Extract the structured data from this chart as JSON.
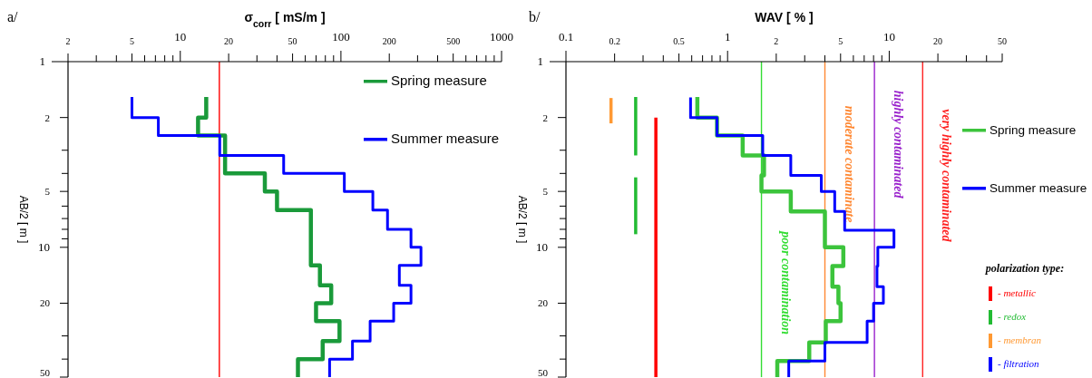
{
  "chart_data": [
    {
      "type": "line",
      "title": "a/",
      "xlabel": "σ$_{corr}$ [ mS/m ]",
      "ylabel": "AB/2 [ m ]",
      "log": "xy",
      "xlim": [
        2,
        1000
      ],
      "ylim": [
        50,
        1
      ],
      "xticks": [
        2,
        {
          "value": 3,
          "label": null
        },
        {
          "value": 4,
          "label": null
        },
        5,
        {
          "value": 6,
          "label": null
        },
        {
          "value": 7,
          "label": null
        },
        {
          "value": 8,
          "label": null
        },
        {
          "value": 9,
          "label": null
        },
        10,
        20,
        {
          "value": 30,
          "label": null
        },
        {
          "value": 40,
          "label": null
        },
        50,
        {
          "value": 60,
          "label": null
        },
        {
          "value": 70,
          "label": null
        },
        {
          "value": 80,
          "label": null
        },
        {
          "value": 90,
          "label": null
        },
        100,
        200,
        {
          "value": 300,
          "label": null
        },
        {
          "value": 400,
          "label": null
        },
        500,
        {
          "value": 600,
          "label": null
        },
        {
          "value": 700,
          "label": null
        },
        {
          "value": 800,
          "label": null
        },
        {
          "value": 900,
          "label": null
        },
        1000
      ],
      "yticks": [
        1,
        2,
        {
          "value": 3,
          "label": null
        },
        {
          "value": 4,
          "label": null
        },
        5,
        {
          "value": 6,
          "label": null
        },
        {
          "value": 7,
          "label": null
        },
        {
          "value": 8,
          "label": null
        },
        {
          "value": 9,
          "label": null
        },
        10,
        20,
        {
          "value": 30,
          "label": null
        },
        {
          "value": 40,
          "label": null
        },
        50
      ],
      "legend": "top right",
      "ref_lines": [
        {
          "axis": "x",
          "value": 17.5,
          "color": "#ff0000"
        }
      ],
      "series": [
        {
          "name": "Spring measure",
          "color": "#1a9a3a",
          "x": [
            14.5,
            14.5,
            12.9,
            12.9,
            19,
            19,
            33.6,
            33.6,
            40,
            40,
            65,
            65,
            74,
            74,
            87,
            87,
            70,
            70,
            98,
            98,
            77,
            77,
            54,
            54
          ],
          "values": [
            1.55,
            2,
            2,
            2.5,
            2.5,
            4,
            4,
            5,
            5,
            6.3,
            6.3,
            12.5,
            12.5,
            16,
            16,
            20,
            20,
            25,
            25,
            32,
            32,
            40,
            40,
            50
          ]
        },
        {
          "name": "Summer measure",
          "color": "#0000ff",
          "x": [
            5,
            5,
            7.3,
            7.3,
            17.6,
            17.6,
            44,
            44,
            105,
            105,
            158,
            158,
            195,
            195,
            273,
            273,
            315,
            315,
            231,
            231,
            273,
            273,
            213,
            213,
            152,
            152,
            118,
            118,
            85,
            85
          ],
          "values": [
            1.55,
            2,
            2,
            2.5,
            2.5,
            3.2,
            3.2,
            4,
            4,
            5,
            5,
            6.3,
            6.3,
            8,
            8,
            10,
            10,
            12.5,
            12.5,
            16,
            16,
            20,
            20,
            25,
            25,
            32,
            32,
            40,
            40,
            50
          ]
        }
      ]
    },
    {
      "type": "line",
      "title": "b/",
      "xlabel": "WAV [ % ]",
      "ylabel": "AB/2 [ m ]",
      "log": "xy",
      "xlim": [
        0.1,
        50
      ],
      "ylim": [
        50,
        1
      ],
      "xticks": [
        0.1,
        0.2,
        {
          "value": 0.3,
          "label": null
        },
        {
          "value": 0.4,
          "label": null
        },
        0.5,
        {
          "value": 0.6,
          "label": null
        },
        {
          "value": 0.7,
          "label": null
        },
        {
          "value": 0.8,
          "label": null
        },
        {
          "value": 0.9,
          "label": null
        },
        1,
        2,
        {
          "value": 3,
          "label": null
        },
        {
          "value": 4,
          "label": null
        },
        5,
        {
          "value": 6,
          "label": null
        },
        {
          "value": 7,
          "label": null
        },
        {
          "value": 8,
          "label": null
        },
        {
          "value": 9,
          "label": null
        },
        10,
        20,
        {
          "value": 30,
          "label": null
        },
        {
          "value": 40,
          "label": null
        },
        50
      ],
      "yticks": [
        1,
        2,
        {
          "value": 3,
          "label": null
        },
        {
          "value": 4,
          "label": null
        },
        5,
        {
          "value": 6,
          "label": null
        },
        {
          "value": 7,
          "label": null
        },
        {
          "value": 8,
          "label": null
        },
        {
          "value": 9,
          "label": null
        },
        10,
        20,
        {
          "value": 30,
          "label": null
        },
        {
          "value": 40,
          "label": null
        },
        50
      ],
      "legend": "right",
      "legend_title": "polarization type:",
      "ref_lines": [
        {
          "axis": "x",
          "value": 1.62,
          "color": "#33dd33"
        },
        {
          "axis": "x",
          "value": 4,
          "color": "#ff8833"
        },
        {
          "axis": "x",
          "value": 8.1,
          "color": "#9922cc"
        },
        {
          "axis": "x",
          "value": 16.1,
          "color": "#ff2222"
        }
      ],
      "annotations": [
        {
          "text": "poor contamination",
          "x": 1.62,
          "y": 8.2
        },
        {
          "text": "moderate contaminate",
          "x": 4,
          "y": 1.73
        },
        {
          "text": "highly contaminated",
          "x": 8.1,
          "y": 1.43
        },
        {
          "text": "very highly contaminated",
          "x": 16.1,
          "y": 1.8
        }
      ],
      "series": [
        {
          "name": "Spring measure",
          "color": "#3cc43c",
          "x": [
            0.65,
            0.65,
            0.86,
            0.86,
            1.24,
            1.24,
            1.68,
            1.68,
            1.62,
            1.62,
            2.46,
            2.46,
            4,
            4,
            5.2,
            5.2,
            4.45,
            4.45,
            4.85,
            4.85,
            5,
            5,
            4.05,
            4.05,
            3.2,
            3.2,
            2.03,
            2.03
          ],
          "values": [
            1.55,
            2,
            2,
            2.5,
            2.5,
            3.2,
            3.2,
            4.1,
            4.1,
            5,
            5,
            6.4,
            6.4,
            10,
            10,
            12.6,
            12.6,
            16.3,
            16.3,
            20,
            20,
            25,
            25,
            32.5,
            32.5,
            40.9,
            40.9,
            50
          ]
        },
        {
          "name": "Summer measure",
          "color": "#0000ff",
          "x": [
            0.59,
            0.59,
            0.86,
            0.86,
            1.65,
            1.65,
            2.46,
            2.46,
            3.8,
            3.8,
            4.6,
            4.6,
            5.3,
            5.3,
            10.7,
            10.7,
            8.5,
            8.5,
            8.4,
            8.4,
            9.2,
            9.2,
            8,
            8,
            7.3,
            7.3,
            4,
            4,
            2.39,
            2.39
          ],
          "values": [
            1.56,
            2,
            2,
            2.5,
            2.5,
            3.2,
            3.2,
            4.1,
            4.1,
            5,
            5,
            6.4,
            6.4,
            8.1,
            8.1,
            10,
            10,
            12.6,
            12.6,
            16.3,
            16.3,
            20,
            20,
            25,
            25,
            32.5,
            32.5,
            40.9,
            40.9,
            50
          ]
        },
        {
          "name": "- metallic",
          "color": "#ff0000",
          "x": [
            0.36,
            0.36
          ],
          "values": [
            2,
            50
          ]
        },
        {
          "name": "- redox",
          "color": "#22bb33",
          "x": [
            0.27,
            0.27
          ],
          "values": [
            1.55,
            3.2
          ]
        },
        {
          "name": "- membran",
          "color": "#ff9933",
          "x": [
            0.19,
            0.19
          ],
          "values": [
            1.57,
            2.15
          ]
        },
        {
          "name": "- filtration",
          "color": "#0000ff"
        },
        {
          "color": "#22bb33",
          "x": [
            0.27,
            0.27
          ],
          "values": [
            4.2,
            8.5
          ]
        }
      ]
    }
  ]
}
